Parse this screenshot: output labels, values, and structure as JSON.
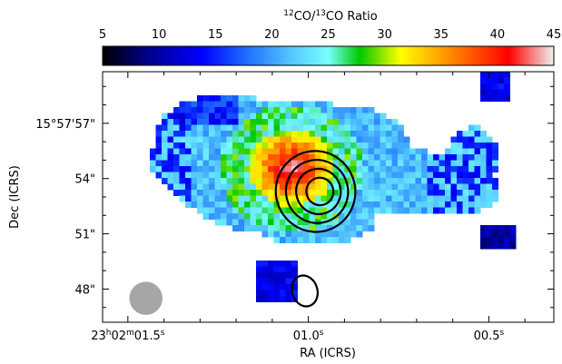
{
  "chart_data": {
    "type": "heatmap",
    "colorbar": {
      "title_pre": "12",
      "title_mid": "CO/",
      "title_sup2": "13",
      "title_post": "CO Ratio",
      "range": [
        5,
        45
      ],
      "ticks": [
        "5",
        "10",
        "15",
        "20",
        "25",
        "30",
        "35",
        "40",
        "45"
      ],
      "tick_values": [
        5,
        10,
        15,
        20,
        25,
        30,
        35,
        40,
        45
      ],
      "colormap": [
        "#000000",
        "#00008b",
        "#0000ff",
        "#1e6fff",
        "#55c8ff",
        "#78ffff",
        "#00c800",
        "#ffff00",
        "#ff8000",
        "#ff0000",
        "#f0f0f0"
      ]
    },
    "xlabel": "RA (ICRS)",
    "ylabel": "Dec (ICRS)",
    "xticks": [
      {
        "value_s": 1.5,
        "hm": "23",
        "h": "h",
        "m_val": "02",
        "m": "m",
        "s_val": "01.5",
        "s": "s"
      },
      {
        "value_s": 1.0,
        "hm": "",
        "h": "",
        "m_val": "",
        "m": "",
        "s_val": "01.0",
        "s": "s"
      },
      {
        "value_s": 0.5,
        "hm": "",
        "h": "",
        "m_val": "",
        "m": "",
        "s_val": "00.5",
        "s": "s"
      }
    ],
    "yticks": [
      {
        "value_arcsec": 57,
        "label": "15°57'57\""
      },
      {
        "value_arcsec": 54,
        "label": "54\""
      },
      {
        "value_arcsec": 51,
        "label": "51\""
      },
      {
        "value_arcsec": 48,
        "label": "48\""
      }
    ],
    "xlim_s": [
      1.57,
      0.32
    ],
    "ylim_arcsec": [
      46.2,
      59.8
    ],
    "contours": [
      {
        "center": [
          0.98,
          53.3
        ],
        "axes": [
          0.11,
          2.2
        ],
        "levels": 4
      },
      {
        "center": [
          1.01,
          47.9
        ],
        "axes": [
          0.035,
          0.85
        ],
        "levels": 1
      }
    ],
    "beam": {
      "center": [
        1.45,
        47.5
      ],
      "diameter_arcsec": 1.8
    }
  }
}
